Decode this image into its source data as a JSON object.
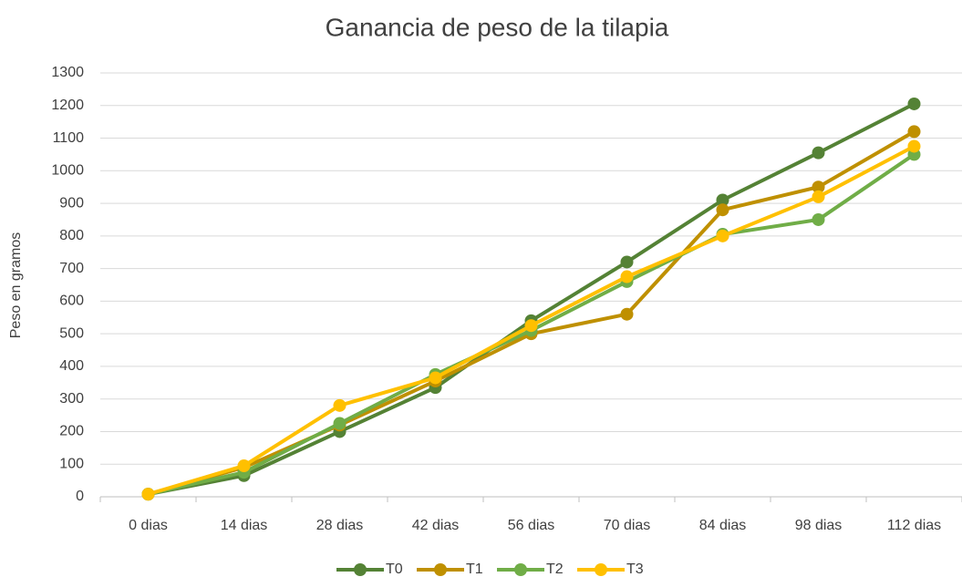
{
  "chart_data": {
    "type": "line",
    "title": "Ganancia de peso de la tilapia",
    "y_label": "Peso en gramos",
    "categories": [
      "0 dias",
      "14 dias",
      "28 dias",
      "42 dias",
      "56 dias",
      "70 dias",
      "84 dias",
      "98 dias",
      "112 dias"
    ],
    "series": [
      {
        "name": "T0",
        "color": "#548235",
        "values": [
          8,
          65,
          200,
          335,
          540,
          720,
          910,
          1055,
          1205
        ]
      },
      {
        "name": "T1",
        "color": "#bf9000",
        "values": [
          8,
          90,
          220,
          355,
          500,
          560,
          880,
          950,
          1120
        ]
      },
      {
        "name": "T2",
        "color": "#70ad47",
        "values": [
          8,
          75,
          225,
          375,
          510,
          660,
          805,
          850,
          1050
        ]
      },
      {
        "name": "T3",
        "color": "#ffc000",
        "values": [
          8,
          95,
          280,
          365,
          525,
          675,
          800,
          920,
          1075
        ]
      }
    ],
    "ylim": [
      0,
      1300
    ],
    "yticks": [
      0,
      100,
      200,
      300,
      400,
      500,
      600,
      700,
      800,
      900,
      1000,
      1100,
      1200,
      1300
    ],
    "grid": true,
    "legend": "bottom"
  }
}
